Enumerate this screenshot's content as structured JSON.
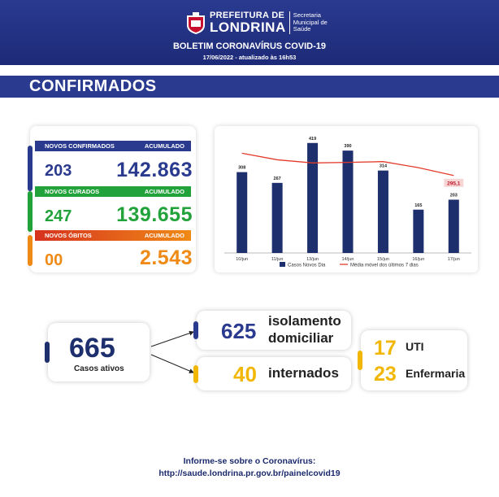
{
  "header": {
    "brand_prefix": "PREFEITURA DE",
    "brand_city": "LONDRINA",
    "secretariat": [
      "Secretaria",
      "Municipal de",
      "Saúde"
    ],
    "bulletin_title": "BOLETIM CORONAVÍRUS COVID-19",
    "bulletin_date": "17/06/2022 - atualizado às 16h53"
  },
  "section": {
    "title": "CONFIRMADOS"
  },
  "stats": {
    "confirmed": {
      "label": "NOVOS CONFIRMADOS",
      "acc_label": "ACUMULADO",
      "day": "203",
      "total": "142.863",
      "color": "#2a3a8f"
    },
    "recovered": {
      "label": "NOVOS CURADOS",
      "acc_label": "ACUMULADO",
      "day": "247",
      "total": "139.655",
      "color": "#22a23a"
    },
    "deaths": {
      "label": "NOVOS ÓBITOS",
      "acc_label": "ACUMULADO",
      "day": "00",
      "total": "2.543",
      "color": "#f08a16"
    }
  },
  "chart_data": {
    "type": "bar",
    "categories": [
      "10/jun",
      "11/jun",
      "13/jun",
      "14/jun",
      "15/jun",
      "16/jun",
      "17/jun"
    ],
    "series": [
      {
        "name": "Casos Novos Dia",
        "type": "bar",
        "values": [
          308,
          267,
          419,
          390,
          314,
          165,
          203
        ],
        "color": "#1e2f6e"
      },
      {
        "name": "Média móvel dos últimos 7 dias",
        "type": "line",
        "values": [
          380,
          355,
          343,
          345,
          348,
          325,
          295.1
        ],
        "color": "#e33b2b"
      }
    ],
    "value_labels": [
      "308",
      "267",
      "419",
      "390",
      "314",
      "165",
      "203"
    ],
    "highlight_label": "295,1",
    "ylim": [
      0,
      440
    ]
  },
  "active": {
    "count": "665",
    "label": "Casos ativos",
    "home_isolation": {
      "count": "625",
      "label_1": "isolamento",
      "label_2": "domiciliar"
    },
    "hospitalized": {
      "count": "40",
      "label": "internados"
    },
    "icu": {
      "count": "17",
      "label": "UTI"
    },
    "ward": {
      "count": "23",
      "label": "Enfermaria"
    }
  },
  "footer": {
    "line1": "Informe-se sobre o Coronavírus:",
    "line2": "http://saude.londrina.pr.gov.br/painelcovid19"
  },
  "colors": {
    "navy": "#2a3a8f",
    "green": "#22a23a",
    "orange": "#f08a16",
    "yellow": "#f2b705",
    "red": "#e33b2b"
  }
}
